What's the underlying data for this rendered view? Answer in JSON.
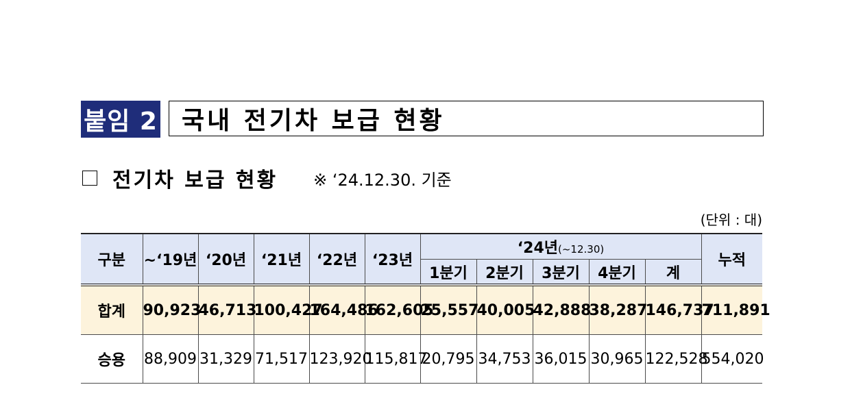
{
  "badge": "붙임 2",
  "title": "국내 전기차 보급 현황",
  "section": {
    "title": "전기차 보급 현황",
    "note": "※ ‘24.12.30. 기준"
  },
  "unit": "(단위 : 대)",
  "table": {
    "headers": {
      "category": "구분",
      "y19": "~‘19년",
      "y20": "‘20년",
      "y21": "‘21년",
      "y22": "‘22년",
      "y23": "‘23년",
      "y24_main": "‘24년",
      "y24_sub": "(~12.30)",
      "q1": "1분기",
      "q2": "2분기",
      "q3": "3분기",
      "q4": "4분기",
      "subtotal": "계",
      "cumulative": "누적"
    },
    "rows": [
      {
        "label": "합계",
        "values": [
          "90,923",
          "46,713",
          "100,427",
          "164,486",
          "162,605",
          "25,557",
          "40,005",
          "42,888",
          "38,287",
          "146,737",
          "711,891"
        ]
      },
      {
        "label": "승용",
        "values": [
          "88,909",
          "31,329",
          "71,517",
          "123,920",
          "115,817",
          "20,795",
          "34,753",
          "36,015",
          "30,965",
          "122,528",
          "554,020"
        ]
      }
    ]
  }
}
